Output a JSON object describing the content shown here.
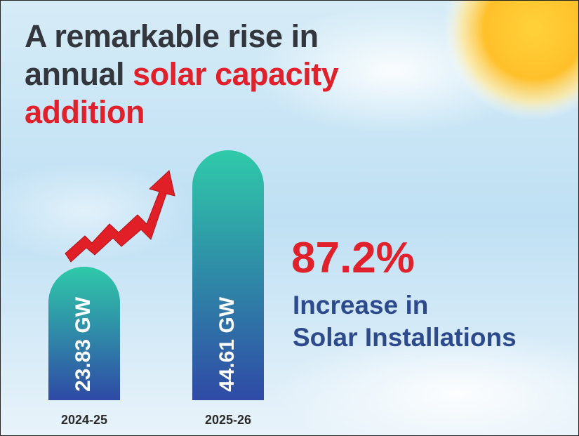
{
  "chart_data": {
    "type": "bar",
    "title": [
      {
        "text": "A remarkable rise in annual",
        "color": "#33363d"
      },
      {
        "text": "solar capacity addition",
        "color": "#e0202a"
      }
    ],
    "categories": [
      "2024-25",
      "2025-26"
    ],
    "values": [
      23.83,
      44.61
    ],
    "value_labels": [
      "23.83 GW",
      "44.61 GW"
    ],
    "colors": [
      "#2fcaa9",
      "#2f4aa6"
    ],
    "ylim": [
      0,
      48
    ],
    "highlight": {
      "text": "87.2%",
      "color": "#e0202a"
    },
    "caption": {
      "lines": [
        "Increase in",
        "Solar Installations"
      ],
      "color": "#2d4b8c"
    }
  }
}
